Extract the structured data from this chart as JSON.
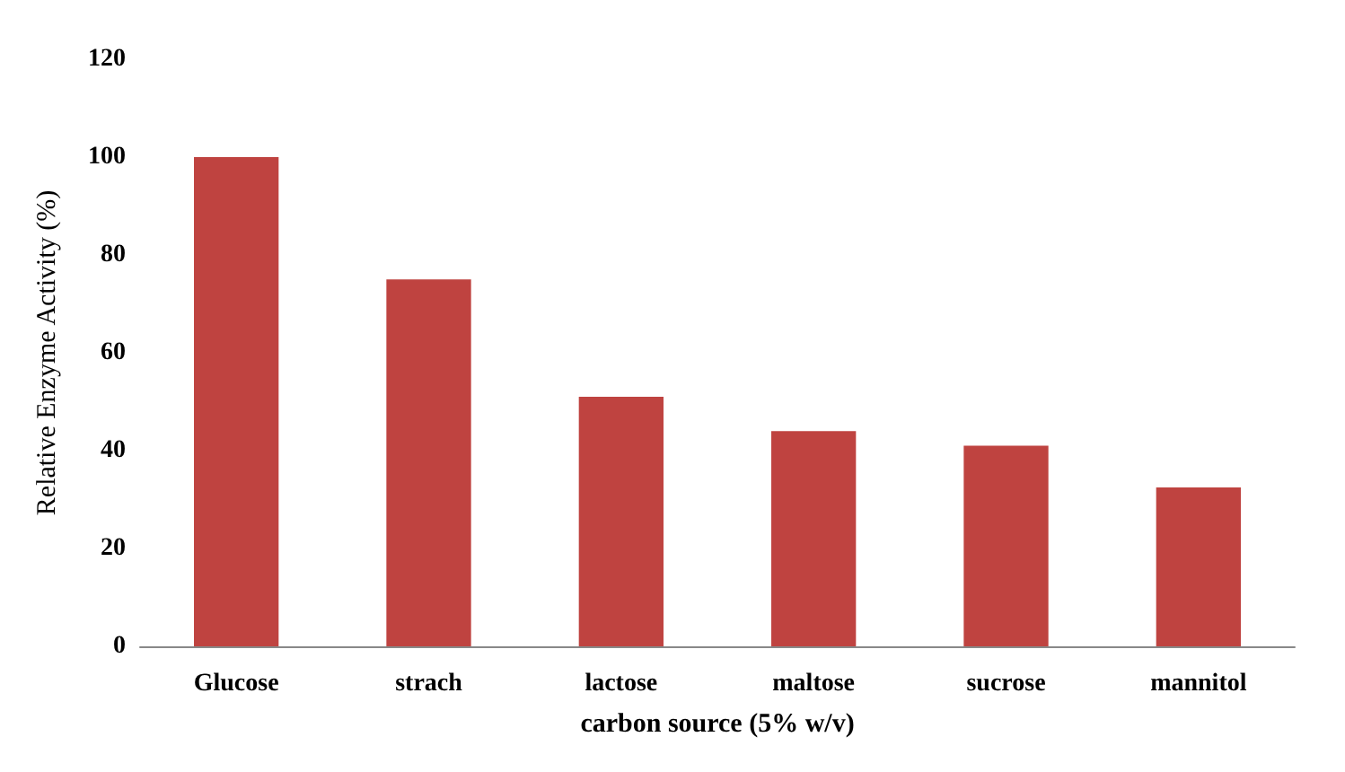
{
  "chart_data": {
    "type": "bar",
    "xlabel": "carbon source (5% w/v)",
    "ylabel": "Relative Enzyme Activity (%)",
    "categories": [
      "Glucose",
      "strach",
      "lactose",
      "maltose",
      "sucrose",
      "mannitol"
    ],
    "values": [
      100,
      75,
      51,
      44,
      41,
      32.5
    ],
    "color": "#bf4340",
    "ylim": [
      0,
      120
    ],
    "yticks": [
      0,
      20,
      40,
      60,
      80,
      100,
      120
    ],
    "grid": false
  }
}
